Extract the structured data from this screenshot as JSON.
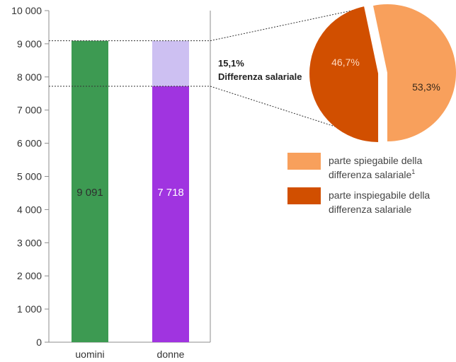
{
  "chart_data": [
    {
      "type": "bar",
      "categories": [
        "uomini",
        "donne"
      ],
      "values": [
        9091,
        7718
      ],
      "value_labels": [
        "9 091",
        "7 718"
      ],
      "reference_value": 9091,
      "y_ticks": [
        "0",
        "1 000",
        "2 000",
        "3 000",
        "4 000",
        "5 000",
        "6 000",
        "7 000",
        "8 000",
        "9 000",
        "10 000"
      ],
      "ylim": [
        0,
        10000
      ],
      "colors": {
        "uomini": "#3d9a52",
        "donne": "#a034e0",
        "gap": "#cdc0f2"
      },
      "annotation": {
        "line1": "15,1%",
        "line2": "Differenza salariale"
      },
      "grid": false
    },
    {
      "type": "pie",
      "slices": [
        {
          "label_text": "53,3%",
          "value": 53.3,
          "color": "#f8a05c"
        },
        {
          "label_text": "46,7%",
          "value": 46.7,
          "color": "#d14f00"
        }
      ],
      "legend": {
        "placement": "bottom-right",
        "items": [
          {
            "line1": "parte spiegabile della",
            "line2": "differenza salariale",
            "sup": "1",
            "color": "#f8a05c"
          },
          {
            "line1": "parte inspiegabile della",
            "line2": "differenza salariale",
            "sup": "",
            "color": "#d14f00"
          }
        ]
      }
    }
  ]
}
